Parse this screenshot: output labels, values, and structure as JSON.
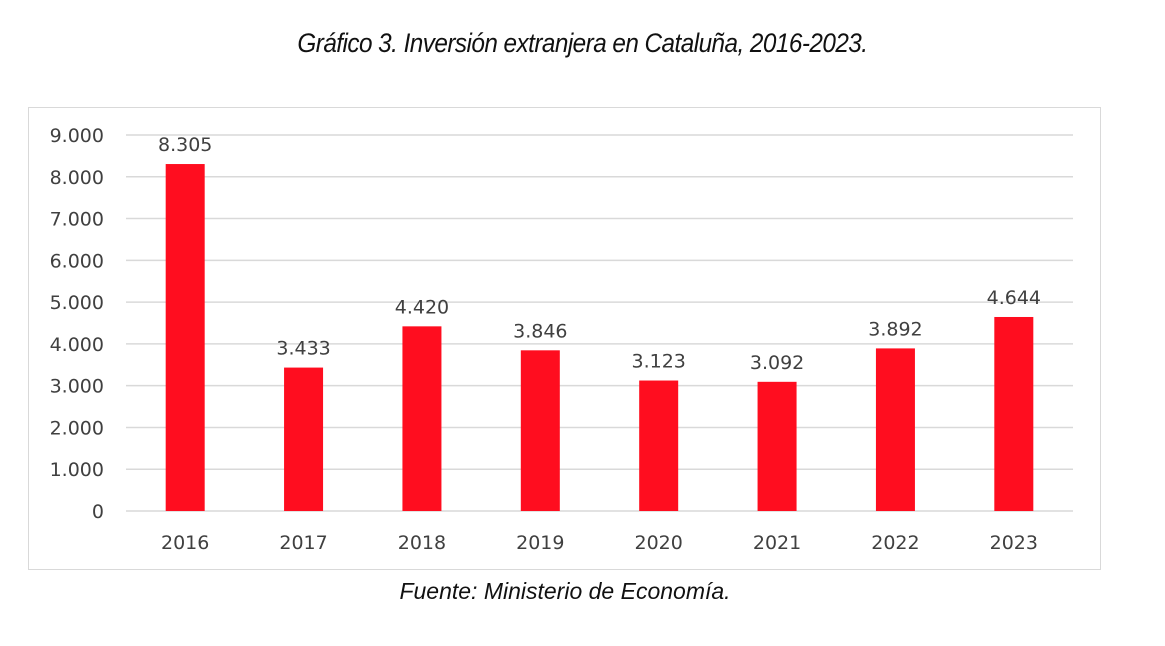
{
  "chart_data": {
    "type": "bar",
    "title": "Gráfico 3. Inversión extranjera en Cataluña, 2016-2023.",
    "source": "Fuente: Ministerio de Economía.",
    "xlabel": "",
    "ylabel": "",
    "categories": [
      "2016",
      "2017",
      "2018",
      "2019",
      "2020",
      "2021",
      "2022",
      "2023"
    ],
    "values": [
      8305,
      3433,
      4420,
      3846,
      3123,
      3092,
      3892,
      4644
    ],
    "data_labels": [
      "8.305",
      "3.433",
      "4.420",
      "3.846",
      "3.123",
      "3.092",
      "3.892",
      "4.644"
    ],
    "ylim": [
      0,
      9000
    ],
    "yticks": [
      0,
      1000,
      2000,
      3000,
      4000,
      5000,
      6000,
      7000,
      8000,
      9000
    ],
    "ytick_labels": [
      "0",
      "1.000",
      "2.000",
      "3.000",
      "4.000",
      "5.000",
      "6.000",
      "7.000",
      "8.000",
      "9.000"
    ],
    "grid": true,
    "legend": "none",
    "bar_color": "#ff0d1f",
    "grid_color": "#d9d9d9"
  }
}
